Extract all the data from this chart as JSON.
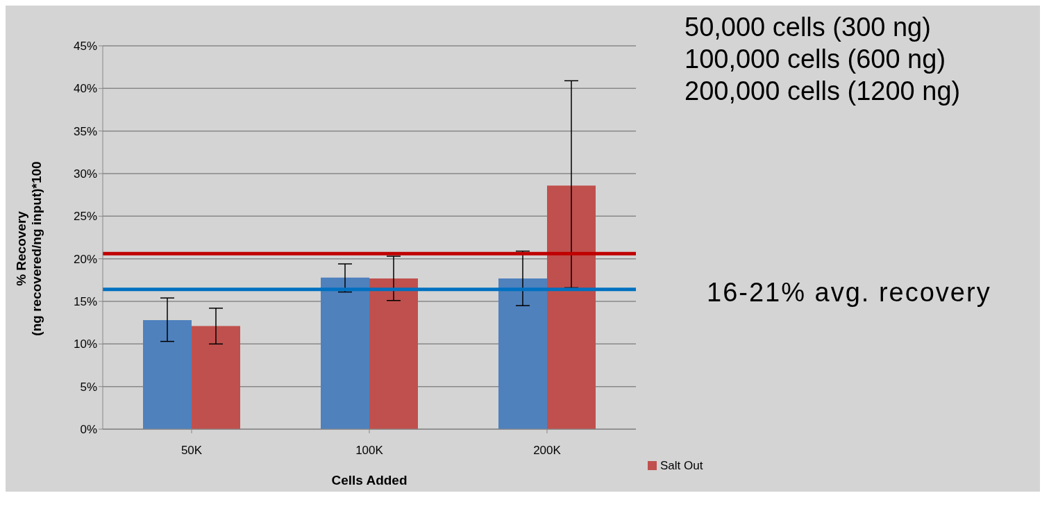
{
  "chart_data": {
    "type": "bar",
    "xlabel": "Cells Added",
    "ylabel": "% Recovery\n(ng recovered/ng input)*100",
    "categories": [
      "50K",
      "100K",
      "200K"
    ],
    "series": [
      {
        "color": "#4f81bd",
        "values": [
          12.8,
          17.8,
          17.7
        ],
        "errors": [
          [
            10.3,
            15.4
          ],
          [
            16.1,
            19.4
          ],
          [
            14.5,
            20.9
          ]
        ]
      },
      {
        "name": "Salt Out",
        "color": "#c0504d",
        "values": [
          12.1,
          17.7,
          28.6
        ],
        "errors": [
          [
            10.0,
            14.2
          ],
          [
            15.1,
            20.3
          ],
          [
            16.6,
            40.9
          ]
        ]
      }
    ],
    "ylim": [
      0,
      45
    ],
    "yticks": [
      {
        "value": 0,
        "label": "0%"
      },
      {
        "value": 5,
        "label": "5%"
      },
      {
        "value": 10,
        "label": "10%"
      },
      {
        "value": 15,
        "label": "15%"
      },
      {
        "value": 20,
        "label": "20%"
      },
      {
        "value": 25,
        "label": "25%"
      },
      {
        "value": 30,
        "label": "30%"
      },
      {
        "value": 35,
        "label": "35%"
      },
      {
        "value": 40,
        "label": "40%"
      },
      {
        "value": 45,
        "label": "45%"
      }
    ],
    "grid": "y",
    "legend": "bottom right",
    "ref_lines": [
      {
        "axis": "y",
        "value": 20.6,
        "color": "#c00000"
      },
      {
        "axis": "y",
        "value": 16.4,
        "color": "#0070c0"
      }
    ],
    "annotations": [
      "50,000 cells (300 ng)\n100,000 cells (600 ng)\n200,000 cells (1200 ng)",
      "16-21% avg. recovery"
    ]
  }
}
